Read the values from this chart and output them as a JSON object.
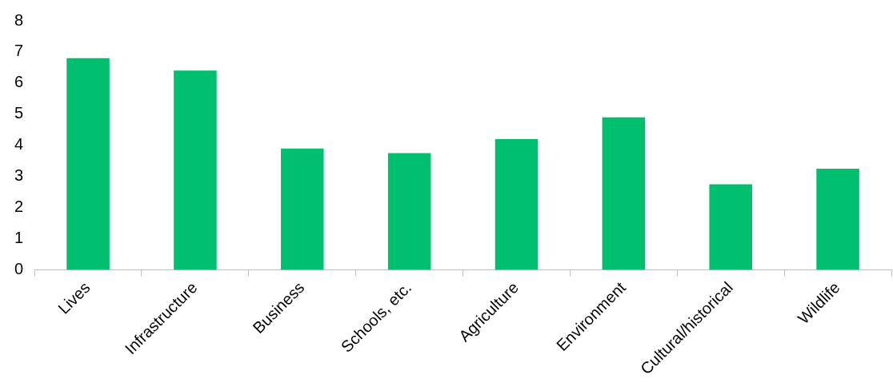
{
  "chart_data": {
    "type": "bar",
    "categories": [
      "Lives",
      "Infrastructure",
      "Business",
      "Schools, etc.",
      "Agriculture",
      "Environment",
      "Cultural/historical",
      "Wildlife"
    ],
    "values": [
      6.8,
      6.4,
      3.9,
      3.75,
      4.2,
      4.9,
      2.75,
      3.25
    ],
    "color": "#00bf6f",
    "ylim": [
      0,
      8
    ],
    "yticks": [
      0,
      1,
      2,
      3,
      4,
      5,
      6,
      7,
      8
    ],
    "grid": false,
    "legend": false
  }
}
